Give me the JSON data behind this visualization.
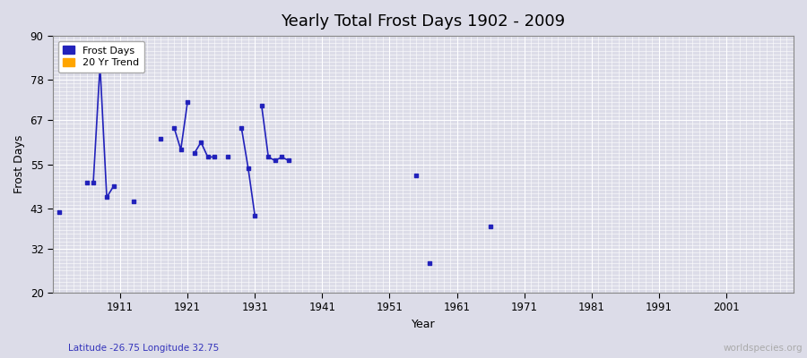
{
  "title": "Yearly Total Frost Days 1902 - 2009",
  "xlabel": "Year",
  "ylabel": "Frost Days",
  "xlim": [
    1901,
    2011
  ],
  "ylim": [
    20,
    90
  ],
  "yticks": [
    20,
    32,
    43,
    55,
    67,
    78,
    90
  ],
  "xticks": [
    1911,
    1921,
    1931,
    1941,
    1951,
    1961,
    1971,
    1981,
    1991,
    2001
  ],
  "background_color": "#dcdce8",
  "plot_bg_color": "#dcdce8",
  "grid_color": "#ffffff",
  "frost_days_color": "#2222bb",
  "trend_color": "#ffa500",
  "subtitle_lat": "Latitude -26.75 Longitude 32.75",
  "watermark": "worldspecies.org",
  "frost_data": {
    "1902": 42,
    "1906": 50,
    "1907": 50,
    "1908": 82,
    "1909": 46,
    "1910": 49,
    "1913": 45,
    "1917": 62,
    "1919": 65,
    "1920": 59,
    "1921": 72,
    "1922": 58,
    "1923": 61,
    "1924": 57,
    "1925": 57,
    "1927": 57,
    "1929": 65,
    "1930": 54,
    "1931": 41,
    "1932": 71,
    "1933": 57,
    "1934": 56,
    "1935": 57,
    "1936": 56,
    "1955": 52,
    "1957": 28,
    "1966": 38
  },
  "segments": [
    [
      1907,
      1908,
      1909,
      1910
    ],
    [
      1919,
      1920,
      1921
    ],
    [
      1922,
      1923,
      1924,
      1925
    ],
    [
      1929,
      1930,
      1931
    ],
    [
      1932,
      1933,
      1934,
      1935,
      1936
    ]
  ],
  "isolated": [
    1902,
    1906,
    1913,
    1917,
    1927,
    1955,
    1957,
    1966
  ]
}
